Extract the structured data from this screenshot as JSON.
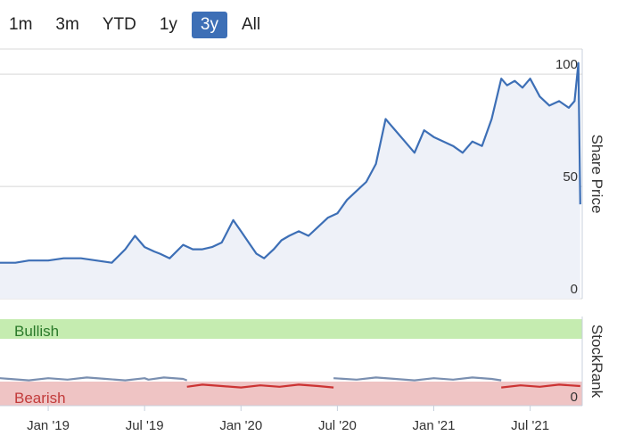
{
  "range_selector": {
    "buttons": [
      "1m",
      "3m",
      "YTD",
      "1y",
      "3y",
      "All"
    ],
    "active": "3y"
  },
  "colors": {
    "price_line": "#3d6fb6",
    "rank_bullish": "#7a8fb0",
    "rank_bearish": "#cc3333",
    "bullish_zone": "#c5ecb0",
    "bearish_zone": "#efc4c4",
    "bullish_text": "#2a7a2a",
    "bearish_text": "#c23b3b",
    "active_button": "#3d6fb6"
  },
  "chart_data": {
    "type": "line",
    "x_ticks": [
      "Jan '19",
      "Jul '19",
      "Jan '20",
      "Jul '20",
      "Jan '21",
      "Jul '21"
    ],
    "price_axis": {
      "label": "Share Price",
      "ticks": [
        0,
        50,
        100
      ],
      "ylim": [
        0,
        108
      ]
    },
    "rank_axis": {
      "label": "StockRank",
      "tick": "0",
      "zones": {
        "top": "Bullish",
        "bottom": "Bearish"
      }
    },
    "series": [
      {
        "axis": "price",
        "x": [
          2018.75,
          2018.83,
          2018.9,
          2019.0,
          2019.08,
          2019.17,
          2019.25,
          2019.33,
          2019.4,
          2019.45,
          2019.5,
          2019.55,
          2019.58,
          2019.63,
          2019.7,
          2019.75,
          2019.8,
          2019.85,
          2019.9,
          2019.96,
          2020.0,
          2020.04,
          2020.08,
          2020.12,
          2020.17,
          2020.21,
          2020.25,
          2020.3,
          2020.35,
          2020.4,
          2020.45,
          2020.5,
          2020.55,
          2020.6,
          2020.65,
          2020.7,
          2020.75,
          2020.77,
          2020.8,
          2020.85,
          2020.9,
          2020.95,
          2021.0,
          2021.05,
          2021.1,
          2021.15,
          2021.2,
          2021.25,
          2021.3,
          2021.35,
          2021.38,
          2021.42,
          2021.46,
          2021.5,
          2021.55,
          2021.6,
          2021.65,
          2021.7,
          2021.73,
          2021.75,
          2021.76
        ],
        "y": [
          16,
          16,
          17,
          17,
          18,
          18,
          17,
          16,
          22,
          28,
          23,
          21,
          20,
          18,
          24,
          22,
          22,
          23,
          25,
          35,
          30,
          25,
          20,
          18,
          22,
          26,
          28,
          30,
          28,
          32,
          36,
          38,
          44,
          48,
          52,
          60,
          80,
          78,
          75,
          70,
          65,
          75,
          72,
          70,
          68,
          65,
          70,
          68,
          80,
          98,
          95,
          97,
          94,
          98,
          90,
          86,
          88,
          85,
          88,
          105,
          42
        ]
      },
      {
        "axis": "rank",
        "segments": [
          {
            "state": "Bullish",
            "x": [
              2018.7,
              2018.8,
              2018.9,
              2019.0,
              2019.1,
              2019.2,
              2019.3,
              2019.4,
              2019.5,
              2019.52,
              2019.6,
              2019.7,
              2019.72
            ]
          },
          {
            "state": "Bearish",
            "x": [
              2019.72,
              2019.8,
              2019.9,
              2020.0,
              2020.1,
              2020.2,
              2020.3,
              2020.4,
              2020.48
            ]
          },
          {
            "state": "Bullish",
            "x": [
              2020.48,
              2020.6,
              2020.7,
              2020.8,
              2020.9,
              2021.0,
              2021.1,
              2021.2,
              2021.3,
              2021.35
            ]
          },
          {
            "state": "Bearish",
            "x": [
              2021.35,
              2021.45,
              2021.55,
              2021.65,
              2021.76
            ]
          }
        ]
      }
    ]
  }
}
